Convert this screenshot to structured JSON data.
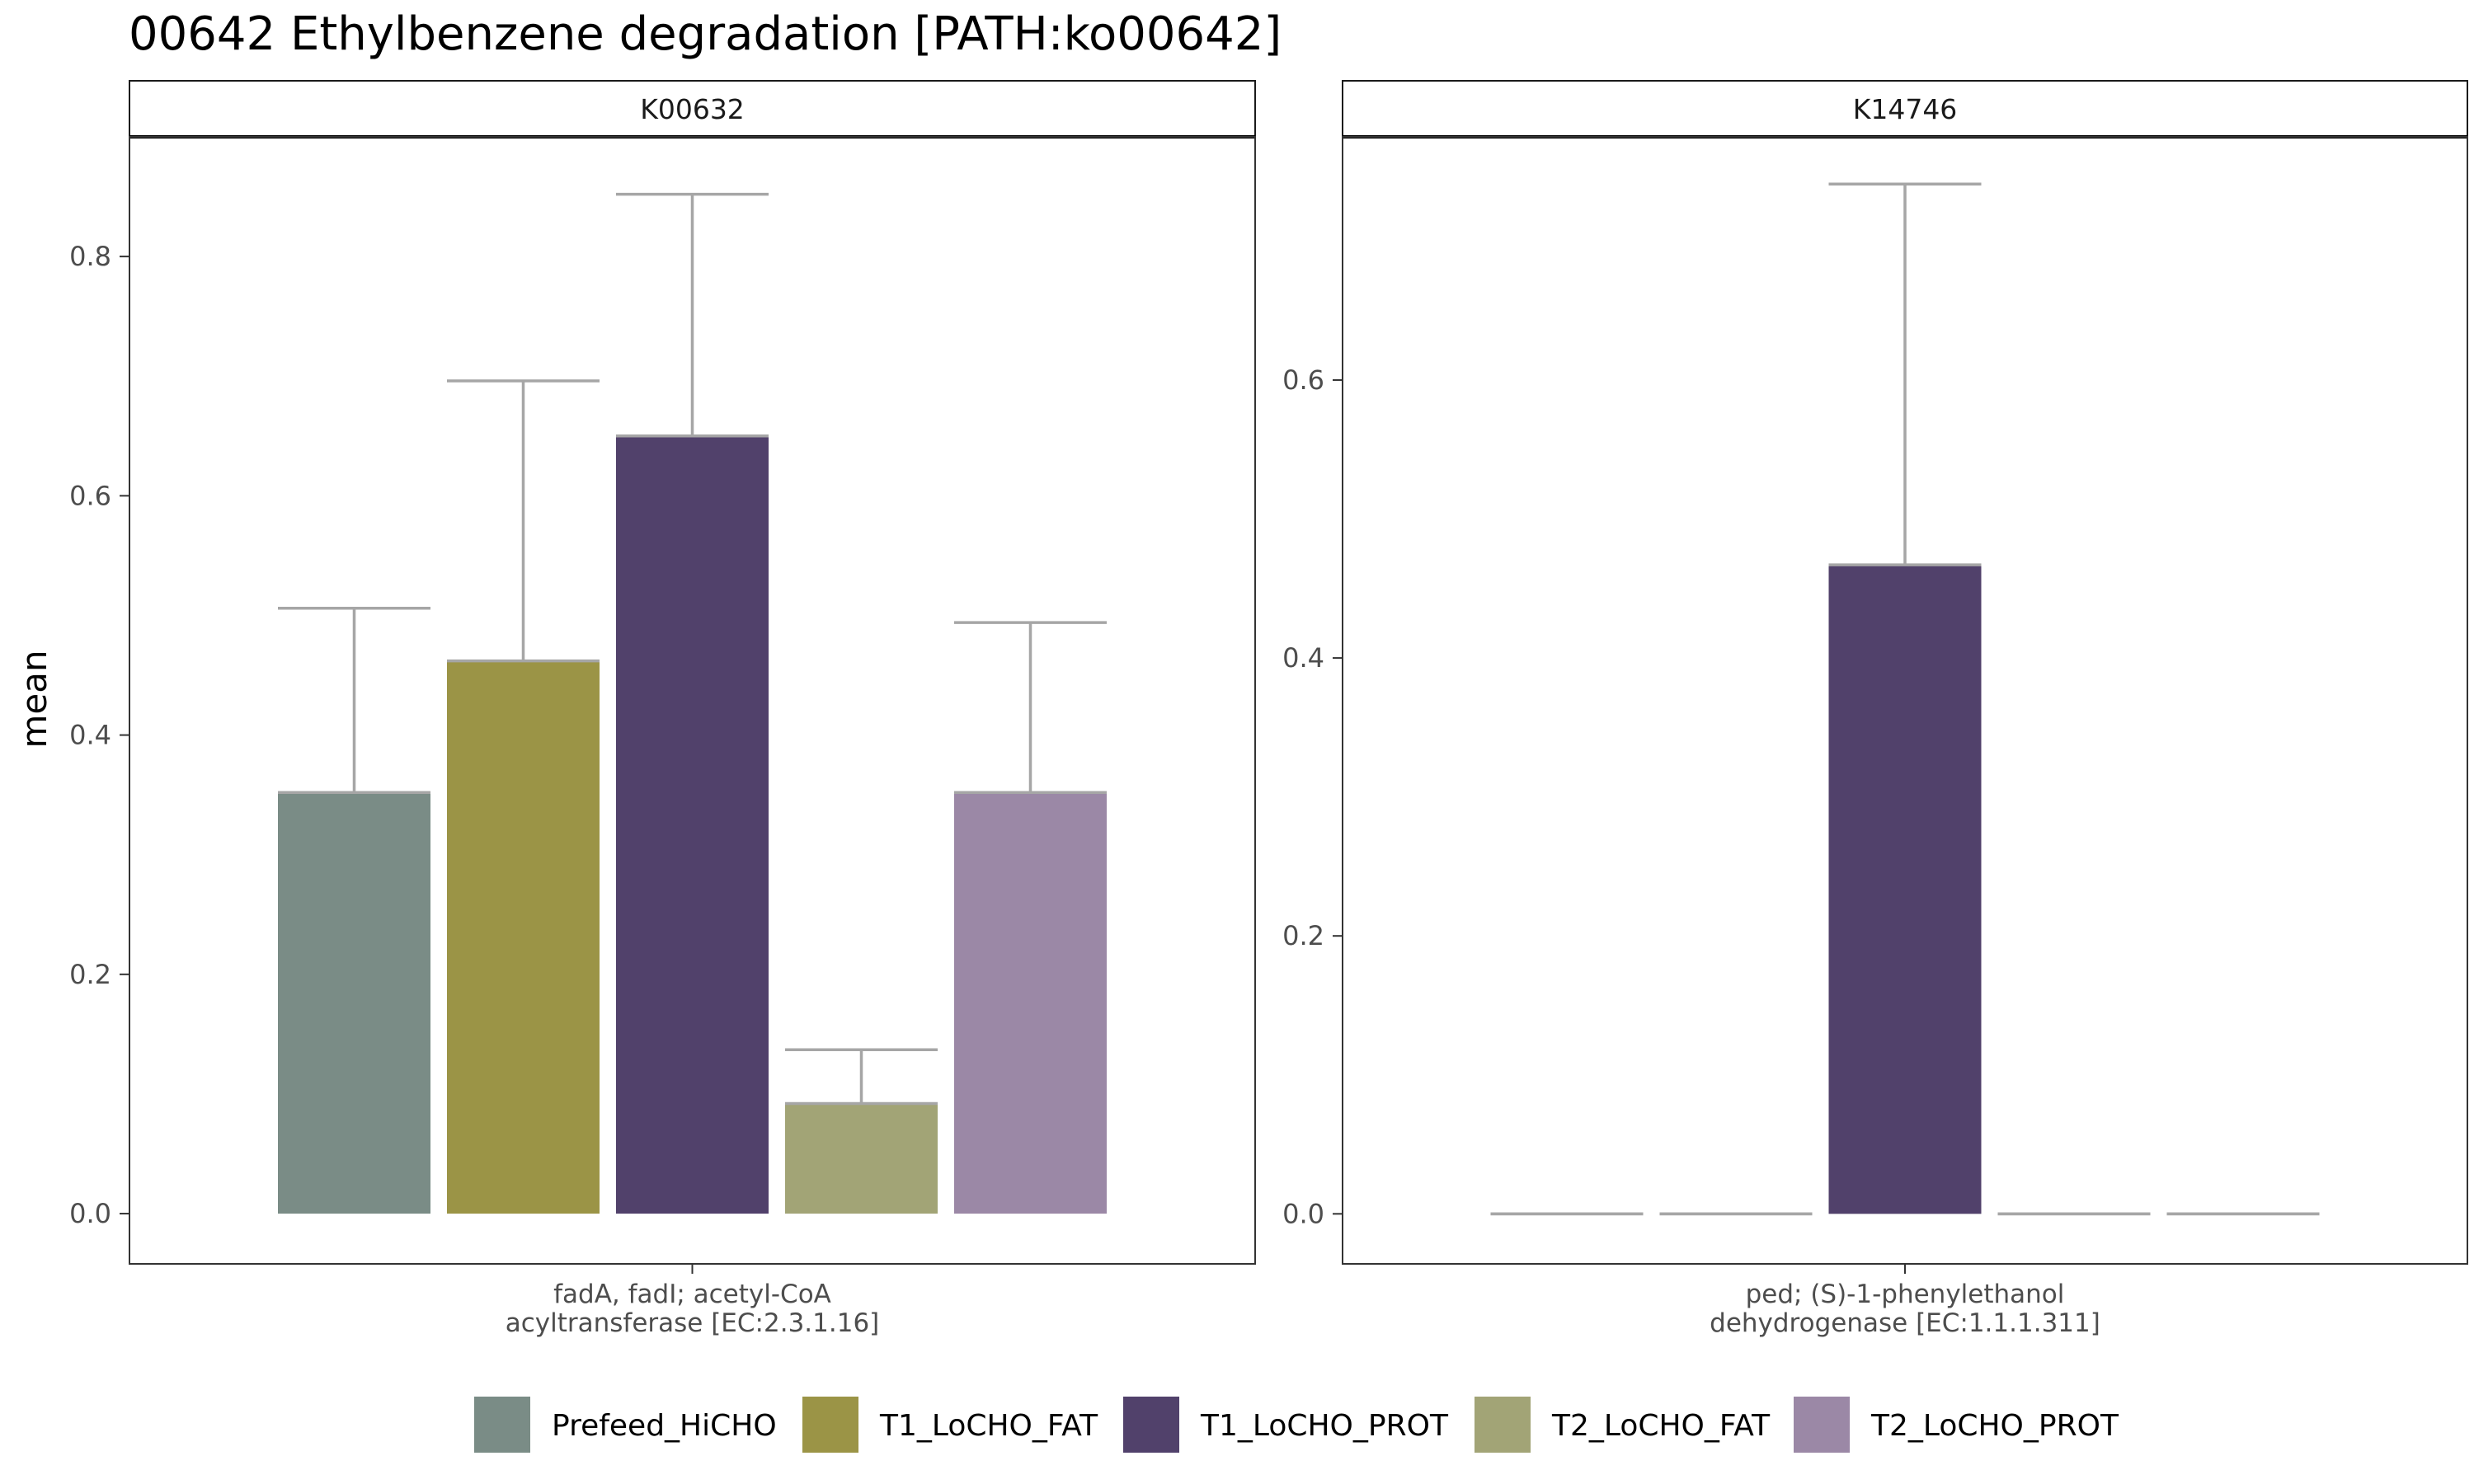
{
  "title": "00642 Ethylbenzene degradation [PATH:ko00642]",
  "ylabel": "mean",
  "legend": {
    "position": "bottom",
    "items": [
      {
        "label": "Prefeed_HiCHO",
        "color": "#7a8c86"
      },
      {
        "label": "T1_LoCHO_FAT",
        "color": "#9b9446"
      },
      {
        "label": "T1_LoCHO_PROT",
        "color": "#51416b"
      },
      {
        "label": "T2_LoCHO_FAT",
        "color": "#a2a476"
      },
      {
        "label": "T2_LoCHO_PROT",
        "color": "#9b88a6"
      }
    ]
  },
  "chart_data": [
    {
      "type": "bar",
      "strip": "K00632",
      "x_category_lines": [
        "fadA, fadI; acetyl-CoA",
        "acyltransferase [EC:2.3.1.16]"
      ],
      "ylabel": "mean",
      "ylim": [
        -0.042,
        0.9
      ],
      "yticks": [
        0.0,
        0.2,
        0.4,
        0.6,
        0.8
      ],
      "tick_labels": [
        "0.0",
        "0.2",
        "0.4",
        "0.6",
        "0.8"
      ],
      "grid": false,
      "series": [
        {
          "name": "Prefeed_HiCHO",
          "value": 0.352,
          "error_upper": 0.506
        },
        {
          "name": "T1_LoCHO_FAT",
          "value": 0.462,
          "error_upper": 0.696
        },
        {
          "name": "T1_LoCHO_PROT",
          "value": 0.65,
          "error_upper": 0.852
        },
        {
          "name": "T2_LoCHO_FAT",
          "value": 0.092,
          "error_upper": 0.137
        },
        {
          "name": "T2_LoCHO_PROT",
          "value": 0.352,
          "error_upper": 0.494
        }
      ]
    },
    {
      "type": "bar",
      "strip": "K14746",
      "x_category_lines": [
        "ped; (S)-1-phenylethanol",
        "dehydrogenase [EC:1.1.1.311]"
      ],
      "ylabel": "",
      "ylim": [
        -0.036,
        0.775
      ],
      "yticks": [
        0.0,
        0.2,
        0.4,
        0.6
      ],
      "tick_labels": [
        "0.0",
        "0.2",
        "0.4",
        "0.6"
      ],
      "grid": false,
      "series": [
        {
          "name": "Prefeed_HiCHO",
          "value": 0.0,
          "error_upper": 0.0
        },
        {
          "name": "T1_LoCHO_FAT",
          "value": 0.0,
          "error_upper": 0.0
        },
        {
          "name": "T1_LoCHO_PROT",
          "value": 0.467,
          "error_upper": 0.741
        },
        {
          "name": "T2_LoCHO_FAT",
          "value": 0.0,
          "error_upper": 0.0
        },
        {
          "name": "T2_LoCHO_PROT",
          "value": 0.0,
          "error_upper": 0.0
        }
      ]
    }
  ]
}
